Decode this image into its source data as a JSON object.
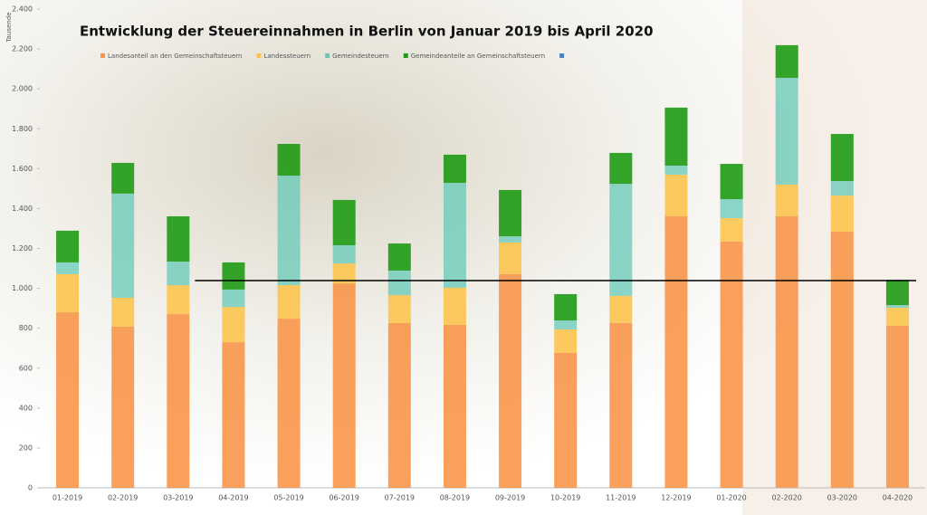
{
  "chart_data": {
    "type": "stacked_bar",
    "title": "Entwicklung der Steuereinnahmen in Berlin von Januar 2019 bis April 2020",
    "y_axis_label": "Tausende",
    "categories": [
      "01-2019",
      "02-2019",
      "03-2019",
      "04-2019",
      "05-2019",
      "06-2019",
      "07-2019",
      "08-2019",
      "09-2019",
      "10-2019",
      "11-2019",
      "12-2019",
      "01-2020",
      "02-2020",
      "03-2020",
      "04-2020"
    ],
    "series": [
      {
        "name": "Landesanteil an den Gemeinschaftsteuern",
        "color": "#f7964a",
        "values": [
          880,
          808,
          871,
          730,
          848,
          1025,
          826,
          817,
          1071,
          676,
          826,
          1361,
          1234,
          1361,
          1284,
          812
        ]
      },
      {
        "name": "Landessteuern",
        "color": "#fcc44e",
        "values": [
          191,
          145,
          145,
          177,
          168,
          100,
          140,
          186,
          159,
          118,
          136,
          209,
          118,
          159,
          181,
          91
        ]
      },
      {
        "name": "Gemeindesteuern",
        "color": "#66c9b8",
        "values": [
          59,
          522,
          118,
          87,
          549,
          91,
          123,
          526,
          31,
          45,
          562,
          45,
          95,
          535,
          73,
          13
        ]
      },
      {
        "name": "Gemeindeanteile an Gemeinschaftsteuern",
        "color": "#1f9a14",
        "values": [
          159,
          154,
          227,
          136,
          159,
          227,
          136,
          141,
          232,
          132,
          155,
          291,
          177,
          164,
          236,
          127
        ]
      }
    ],
    "extra_legend_color": "#4f81bd",
    "reference_line": {
      "value": 1039,
      "color": "#000000",
      "from_index": 3
    },
    "ylim": [
      0,
      2400
    ],
    "yticks": [
      0,
      200,
      400,
      600,
      800,
      {
        "value": 1000,
        "label": "1.000"
      },
      {
        "value": 1200,
        "label": "1.200"
      },
      {
        "value": 1400,
        "label": "1.400"
      },
      {
        "value": 1600,
        "label": "1.600"
      },
      {
        "value": 1800,
        "label": "1.800"
      },
      {
        "value": 2000,
        "label": "2.000"
      },
      {
        "value": 2200,
        "label": "2.200"
      },
      {
        "value": 2400,
        "label": "2.400"
      }
    ]
  }
}
